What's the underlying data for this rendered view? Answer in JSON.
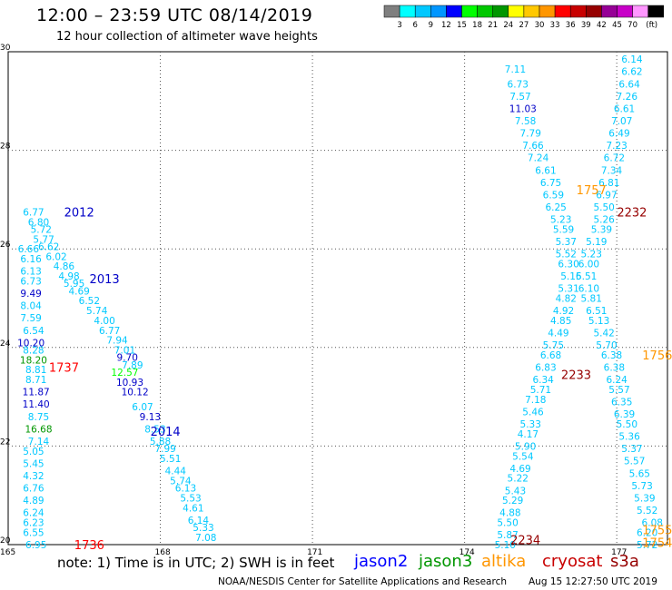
{
  "header": {
    "title": "12:00 – 23:59 UTC 08/14/2019",
    "subtitle": "12 hour collection of altimeter wave heights"
  },
  "colorbar": {
    "unit_label": "(ft)",
    "ticks": [
      "3",
      "6",
      "9",
      "12",
      "15",
      "18",
      "21",
      "24",
      "27",
      "30",
      "33",
      "36",
      "39",
      "42",
      "45",
      "70"
    ],
    "colors": [
      "#7f7f7f",
      "#00ffff",
      "#00c8ff",
      "#0096ff",
      "#0000ff",
      "#00ff00",
      "#00c800",
      "#009600",
      "#ffff00",
      "#ffc800",
      "#ff9600",
      "#ff0000",
      "#c80000",
      "#960000",
      "#960096",
      "#c800c8",
      "#ff96ff",
      "#000000"
    ]
  },
  "footer": {
    "note": "note:  1) Time is in UTC;  2) SWH is in feet",
    "satellites": [
      {
        "name": "jason2",
        "color": "#0000ff"
      },
      {
        "name": "jason3",
        "color": "#009600"
      },
      {
        "name": "altika",
        "color": "#ff9600"
      },
      {
        "name": "cryosat",
        "color": "#c80000"
      },
      {
        "name": "s3a",
        "color": "#960000"
      }
    ],
    "credit": "NOAA/NESDIS Center for Satellite Applications and Research",
    "timestamp": "Aug 15 12:27:50 UTC 2019"
  },
  "chart_data": {
    "type": "scatter",
    "xlim": [
      165,
      178
    ],
    "ylim": [
      20,
      30
    ],
    "x_ticks": [
      "165",
      "168",
      "171",
      "174",
      "177"
    ],
    "y_ticks": [
      "20",
      "22",
      "24",
      "26",
      "28",
      "30"
    ],
    "grid": true,
    "time_labels": [
      {
        "text": "2012",
        "x": 166.4,
        "y": 26.75,
        "color": "#0000c8"
      },
      {
        "text": "2013",
        "x": 166.9,
        "y": 25.4,
        "color": "#0000c8"
      },
      {
        "text": "2014",
        "x": 168.1,
        "y": 22.3,
        "color": "#0000c8"
      },
      {
        "text": "1737",
        "x": 166.1,
        "y": 23.6,
        "color": "#ff0000"
      },
      {
        "text": "1736",
        "x": 166.6,
        "y": 20.0,
        "color": "#ff0000"
      },
      {
        "text": "1757",
        "x": 176.5,
        "y": 27.2,
        "color": "#ff9600"
      },
      {
        "text": "1756",
        "x": 177.8,
        "y": 23.85,
        "color": "#ff9600"
      },
      {
        "text": "1755",
        "x": 177.8,
        "y": 20.3,
        "color": "#ff9600"
      },
      {
        "text": "1754",
        "x": 177.8,
        "y": 20.05,
        "color": "#ff9600"
      },
      {
        "text": "2232",
        "x": 177.3,
        "y": 26.75,
        "color": "#960000"
      },
      {
        "text": "2233",
        "x": 176.2,
        "y": 23.45,
        "color": "#960000"
      },
      {
        "text": "2234",
        "x": 175.2,
        "y": 20.1,
        "color": "#960000"
      }
    ],
    "points": [
      {
        "x": 165.5,
        "y": 26.75,
        "v": "6.77",
        "c": "#00c8ff"
      },
      {
        "x": 165.6,
        "y": 26.55,
        "v": "6.80",
        "c": "#00c8ff"
      },
      {
        "x": 165.65,
        "y": 26.4,
        "v": "5.72",
        "c": "#00c8ff"
      },
      {
        "x": 165.7,
        "y": 26.2,
        "v": "5.77",
        "c": "#00c8ff"
      },
      {
        "x": 165.4,
        "y": 26.0,
        "v": "6.66",
        "c": "#00c8ff"
      },
      {
        "x": 165.8,
        "y": 26.05,
        "v": "6.62",
        "c": "#00c8ff"
      },
      {
        "x": 165.95,
        "y": 25.85,
        "v": "6.02",
        "c": "#00c8ff"
      },
      {
        "x": 165.45,
        "y": 25.8,
        "v": "6.16",
        "c": "#00c8ff"
      },
      {
        "x": 166.1,
        "y": 25.65,
        "v": "4.86",
        "c": "#00c8ff"
      },
      {
        "x": 165.45,
        "y": 25.55,
        "v": "6.13",
        "c": "#00c8ff"
      },
      {
        "x": 166.2,
        "y": 25.45,
        "v": "4.98",
        "c": "#00c8ff"
      },
      {
        "x": 165.45,
        "y": 25.35,
        "v": "6.73",
        "c": "#00c8ff"
      },
      {
        "x": 166.3,
        "y": 25.3,
        "v": "5.95",
        "c": "#00c8ff"
      },
      {
        "x": 165.45,
        "y": 25.1,
        "v": "9.49",
        "c": "#0000c8"
      },
      {
        "x": 166.4,
        "y": 25.15,
        "v": "4.69",
        "c": "#00c8ff"
      },
      {
        "x": 165.45,
        "y": 24.85,
        "v": "8.04",
        "c": "#00c8ff"
      },
      {
        "x": 166.6,
        "y": 24.95,
        "v": "6.52",
        "c": "#00c8ff"
      },
      {
        "x": 166.75,
        "y": 24.75,
        "v": "5.74",
        "c": "#00c8ff"
      },
      {
        "x": 165.45,
        "y": 24.6,
        "v": "7.59",
        "c": "#00c8ff"
      },
      {
        "x": 166.9,
        "y": 24.55,
        "v": "4.00",
        "c": "#00c8ff"
      },
      {
        "x": 165.5,
        "y": 24.35,
        "v": "6.54",
        "c": "#00c8ff"
      },
      {
        "x": 167.0,
        "y": 24.35,
        "v": "6.77",
        "c": "#00c8ff"
      },
      {
        "x": 165.45,
        "y": 24.1,
        "v": "10.20",
        "c": "#0000c8"
      },
      {
        "x": 167.15,
        "y": 24.15,
        "v": "7.94",
        "c": "#00c8ff"
      },
      {
        "x": 165.5,
        "y": 23.95,
        "v": "8.28",
        "c": "#00c8ff"
      },
      {
        "x": 167.3,
        "y": 23.95,
        "v": "7.01",
        "c": "#00c8ff"
      },
      {
        "x": 165.5,
        "y": 23.75,
        "v": "18.20",
        "c": "#009600"
      },
      {
        "x": 167.35,
        "y": 23.8,
        "v": "9.70",
        "c": "#0000c8"
      },
      {
        "x": 165.55,
        "y": 23.55,
        "v": "8.81",
        "c": "#00c8ff"
      },
      {
        "x": 167.45,
        "y": 23.65,
        "v": "7.89",
        "c": "#00c8ff"
      },
      {
        "x": 167.3,
        "y": 23.5,
        "v": "12.57",
        "c": "#00ff00"
      },
      {
        "x": 165.55,
        "y": 23.35,
        "v": "8.71",
        "c": "#00c8ff"
      },
      {
        "x": 167.4,
        "y": 23.3,
        "v": "10.93",
        "c": "#0000c8"
      },
      {
        "x": 165.55,
        "y": 23.1,
        "v": "11.87",
        "c": "#0000c8"
      },
      {
        "x": 167.5,
        "y": 23.1,
        "v": "10.12",
        "c": "#0000c8"
      },
      {
        "x": 165.55,
        "y": 22.85,
        "v": "11.40",
        "c": "#0000c8"
      },
      {
        "x": 167.65,
        "y": 22.8,
        "v": "6.07",
        "c": "#00c8ff"
      },
      {
        "x": 165.6,
        "y": 22.6,
        "v": "8.75",
        "c": "#00c8ff"
      },
      {
        "x": 167.8,
        "y": 22.6,
        "v": "9.13",
        "c": "#0000c8"
      },
      {
        "x": 165.6,
        "y": 22.35,
        "v": "16.68",
        "c": "#009600"
      },
      {
        "x": 167.9,
        "y": 22.35,
        "v": "8.53",
        "c": "#00c8ff"
      },
      {
        "x": 165.6,
        "y": 22.1,
        "v": "7.14",
        "c": "#00c8ff"
      },
      {
        "x": 168.0,
        "y": 22.1,
        "v": "5.88",
        "c": "#00c8ff"
      },
      {
        "x": 165.5,
        "y": 21.9,
        "v": "5.05",
        "c": "#00c8ff"
      },
      {
        "x": 168.1,
        "y": 21.95,
        "v": "7.99",
        "c": "#00c8ff"
      },
      {
        "x": 165.5,
        "y": 21.65,
        "v": "5.45",
        "c": "#00c8ff"
      },
      {
        "x": 168.2,
        "y": 21.75,
        "v": "5.51",
        "c": "#00c8ff"
      },
      {
        "x": 168.3,
        "y": 21.5,
        "v": "4.44",
        "c": "#00c8ff"
      },
      {
        "x": 165.5,
        "y": 21.4,
        "v": "4.32",
        "c": "#00c8ff"
      },
      {
        "x": 168.4,
        "y": 21.3,
        "v": "5.74",
        "c": "#00c8ff"
      },
      {
        "x": 165.5,
        "y": 21.15,
        "v": "6.76",
        "c": "#00c8ff"
      },
      {
        "x": 168.5,
        "y": 21.15,
        "v": "6.13",
        "c": "#00c8ff"
      },
      {
        "x": 165.5,
        "y": 20.9,
        "v": "4.89",
        "c": "#00c8ff"
      },
      {
        "x": 168.6,
        "y": 20.95,
        "v": "5.53",
        "c": "#00c8ff"
      },
      {
        "x": 165.5,
        "y": 20.65,
        "v": "6.24",
        "c": "#00c8ff"
      },
      {
        "x": 168.65,
        "y": 20.75,
        "v": "4.61",
        "c": "#00c8ff"
      },
      {
        "x": 165.5,
        "y": 20.45,
        "v": "6.23",
        "c": "#00c8ff"
      },
      {
        "x": 168.75,
        "y": 20.5,
        "v": "6.14",
        "c": "#00c8ff"
      },
      {
        "x": 165.5,
        "y": 20.25,
        "v": "6.55",
        "c": "#00c8ff"
      },
      {
        "x": 168.85,
        "y": 20.35,
        "v": "5.33",
        "c": "#00c8ff"
      },
      {
        "x": 165.55,
        "y": 20.0,
        "v": "6.95",
        "c": "#00c8ff"
      },
      {
        "x": 168.9,
        "y": 20.15,
        "v": "7.08",
        "c": "#00c8ff"
      },
      {
        "x": 175.0,
        "y": 29.65,
        "v": "7.11",
        "c": "#00c8ff"
      },
      {
        "x": 175.05,
        "y": 29.35,
        "v": "6.73",
        "c": "#00c8ff"
      },
      {
        "x": 175.1,
        "y": 29.1,
        "v": "7.57",
        "c": "#00c8ff"
      },
      {
        "x": 175.15,
        "y": 28.85,
        "v": "11.03",
        "c": "#0000c8"
      },
      {
        "x": 175.2,
        "y": 28.6,
        "v": "7.58",
        "c": "#00c8ff"
      },
      {
        "x": 175.3,
        "y": 28.35,
        "v": "7.79",
        "c": "#00c8ff"
      },
      {
        "x": 175.35,
        "y": 28.1,
        "v": "7.66",
        "c": "#00c8ff"
      },
      {
        "x": 175.45,
        "y": 27.85,
        "v": "7.24",
        "c": "#00c8ff"
      },
      {
        "x": 175.6,
        "y": 27.6,
        "v": "6.61",
        "c": "#00c8ff"
      },
      {
        "x": 175.7,
        "y": 27.35,
        "v": "6.75",
        "c": "#00c8ff"
      },
      {
        "x": 175.75,
        "y": 27.1,
        "v": "6.59",
        "c": "#00c8ff"
      },
      {
        "x": 175.8,
        "y": 26.85,
        "v": "6.25",
        "c": "#00c8ff"
      },
      {
        "x": 175.9,
        "y": 26.6,
        "v": "5.23",
        "c": "#00c8ff"
      },
      {
        "x": 175.95,
        "y": 26.4,
        "v": "5.59",
        "c": "#00c8ff"
      },
      {
        "x": 176.0,
        "y": 26.15,
        "v": "5.37",
        "c": "#00c8ff"
      },
      {
        "x": 176.0,
        "y": 25.9,
        "v": "5.52",
        "c": "#00c8ff"
      },
      {
        "x": 176.05,
        "y": 25.7,
        "v": "6.30",
        "c": "#00c8ff"
      },
      {
        "x": 176.1,
        "y": 25.45,
        "v": "5.16",
        "c": "#00c8ff"
      },
      {
        "x": 176.05,
        "y": 25.2,
        "v": "5.31",
        "c": "#00c8ff"
      },
      {
        "x": 176.0,
        "y": 25.0,
        "v": "4.82",
        "c": "#00c8ff"
      },
      {
        "x": 175.95,
        "y": 24.75,
        "v": "4.92",
        "c": "#00c8ff"
      },
      {
        "x": 175.9,
        "y": 24.55,
        "v": "4.85",
        "c": "#00c8ff"
      },
      {
        "x": 175.85,
        "y": 24.3,
        "v": "4.49",
        "c": "#00c8ff"
      },
      {
        "x": 175.75,
        "y": 24.05,
        "v": "5.75",
        "c": "#00c8ff"
      },
      {
        "x": 175.7,
        "y": 23.85,
        "v": "6.68",
        "c": "#00c8ff"
      },
      {
        "x": 175.6,
        "y": 23.6,
        "v": "6.83",
        "c": "#00c8ff"
      },
      {
        "x": 175.55,
        "y": 23.35,
        "v": "6.34",
        "c": "#00c8ff"
      },
      {
        "x": 175.5,
        "y": 23.15,
        "v": "5.71",
        "c": "#00c8ff"
      },
      {
        "x": 175.4,
        "y": 22.95,
        "v": "7.18",
        "c": "#00c8ff"
      },
      {
        "x": 175.35,
        "y": 22.7,
        "v": "5.46",
        "c": "#00c8ff"
      },
      {
        "x": 175.3,
        "y": 22.45,
        "v": "5.33",
        "c": "#00c8ff"
      },
      {
        "x": 175.25,
        "y": 22.25,
        "v": "4.17",
        "c": "#00c8ff"
      },
      {
        "x": 175.2,
        "y": 22.0,
        "v": "5.90",
        "c": "#00c8ff"
      },
      {
        "x": 175.15,
        "y": 21.8,
        "v": "5.54",
        "c": "#00c8ff"
      },
      {
        "x": 175.1,
        "y": 21.55,
        "v": "4.69",
        "c": "#00c8ff"
      },
      {
        "x": 175.05,
        "y": 21.35,
        "v": "5.22",
        "c": "#00c8ff"
      },
      {
        "x": 175.0,
        "y": 21.1,
        "v": "5.43",
        "c": "#00c8ff"
      },
      {
        "x": 174.95,
        "y": 20.9,
        "v": "5.29",
        "c": "#00c8ff"
      },
      {
        "x": 174.9,
        "y": 20.65,
        "v": "4.88",
        "c": "#00c8ff"
      },
      {
        "x": 174.85,
        "y": 20.45,
        "v": "5.50",
        "c": "#00c8ff"
      },
      {
        "x": 174.85,
        "y": 20.2,
        "v": "5.87",
        "c": "#00c8ff"
      },
      {
        "x": 174.8,
        "y": 20.0,
        "v": "5.10",
        "c": "#00c8ff"
      },
      {
        "x": 177.3,
        "y": 29.85,
        "v": "6.14",
        "c": "#00c8ff"
      },
      {
        "x": 177.3,
        "y": 29.6,
        "v": "6.62",
        "c": "#00c8ff"
      },
      {
        "x": 177.25,
        "y": 29.35,
        "v": "6.64",
        "c": "#00c8ff"
      },
      {
        "x": 177.2,
        "y": 29.1,
        "v": "7.26",
        "c": "#00c8ff"
      },
      {
        "x": 177.15,
        "y": 28.85,
        "v": "6.61",
        "c": "#00c8ff"
      },
      {
        "x": 177.1,
        "y": 28.6,
        "v": "7.07",
        "c": "#00c8ff"
      },
      {
        "x": 177.05,
        "y": 28.35,
        "v": "6.49",
        "c": "#00c8ff"
      },
      {
        "x": 177.0,
        "y": 28.1,
        "v": "7.23",
        "c": "#00c8ff"
      },
      {
        "x": 176.95,
        "y": 27.85,
        "v": "6.72",
        "c": "#00c8ff"
      },
      {
        "x": 176.9,
        "y": 27.6,
        "v": "7.34",
        "c": "#00c8ff"
      },
      {
        "x": 176.85,
        "y": 27.35,
        "v": "6.81",
        "c": "#00c8ff"
      },
      {
        "x": 176.8,
        "y": 27.1,
        "v": "6.97",
        "c": "#00c8ff"
      },
      {
        "x": 176.75,
        "y": 26.85,
        "v": "5.50",
        "c": "#00c8ff"
      },
      {
        "x": 176.75,
        "y": 26.6,
        "v": "5.26",
        "c": "#00c8ff"
      },
      {
        "x": 176.7,
        "y": 26.4,
        "v": "5.39",
        "c": "#00c8ff"
      },
      {
        "x": 176.6,
        "y": 26.15,
        "v": "5.19",
        "c": "#00c8ff"
      },
      {
        "x": 176.5,
        "y": 25.9,
        "v": "5.23",
        "c": "#00c8ff"
      },
      {
        "x": 176.45,
        "y": 25.7,
        "v": "6.00",
        "c": "#00c8ff"
      },
      {
        "x": 176.4,
        "y": 25.45,
        "v": "5.51",
        "c": "#00c8ff"
      },
      {
        "x": 176.45,
        "y": 25.2,
        "v": "6.10",
        "c": "#00c8ff"
      },
      {
        "x": 176.5,
        "y": 25.0,
        "v": "5.81",
        "c": "#00c8ff"
      },
      {
        "x": 176.6,
        "y": 24.75,
        "v": "6.51",
        "c": "#00c8ff"
      },
      {
        "x": 176.65,
        "y": 24.55,
        "v": "5.13",
        "c": "#00c8ff"
      },
      {
        "x": 176.75,
        "y": 24.3,
        "v": "5.42",
        "c": "#00c8ff"
      },
      {
        "x": 176.8,
        "y": 24.05,
        "v": "5.70",
        "c": "#00c8ff"
      },
      {
        "x": 176.9,
        "y": 23.85,
        "v": "6.38",
        "c": "#00c8ff"
      },
      {
        "x": 176.95,
        "y": 23.6,
        "v": "6.38",
        "c": "#00c8ff"
      },
      {
        "x": 177.0,
        "y": 23.35,
        "v": "6.24",
        "c": "#00c8ff"
      },
      {
        "x": 177.05,
        "y": 23.15,
        "v": "5.57",
        "c": "#00c8ff"
      },
      {
        "x": 177.1,
        "y": 22.9,
        "v": "6.35",
        "c": "#00c8ff"
      },
      {
        "x": 177.15,
        "y": 22.65,
        "v": "6.39",
        "c": "#00c8ff"
      },
      {
        "x": 177.2,
        "y": 22.45,
        "v": "5.50",
        "c": "#00c8ff"
      },
      {
        "x": 177.25,
        "y": 22.2,
        "v": "5.36",
        "c": "#00c8ff"
      },
      {
        "x": 177.3,
        "y": 21.95,
        "v": "5.37",
        "c": "#00c8ff"
      },
      {
        "x": 177.35,
        "y": 21.7,
        "v": "5.57",
        "c": "#00c8ff"
      },
      {
        "x": 177.45,
        "y": 21.45,
        "v": "5.65",
        "c": "#00c8ff"
      },
      {
        "x": 177.5,
        "y": 21.2,
        "v": "5.73",
        "c": "#00c8ff"
      },
      {
        "x": 177.55,
        "y": 20.95,
        "v": "5.39",
        "c": "#00c8ff"
      },
      {
        "x": 177.6,
        "y": 20.7,
        "v": "5.52",
        "c": "#00c8ff"
      },
      {
        "x": 177.7,
        "y": 20.45,
        "v": "6.08",
        "c": "#00c8ff"
      },
      {
        "x": 177.6,
        "y": 20.25,
        "v": "6.20",
        "c": "#00c8ff"
      },
      {
        "x": 177.6,
        "y": 20.0,
        "v": "5.72",
        "c": "#00c8ff"
      }
    ]
  }
}
